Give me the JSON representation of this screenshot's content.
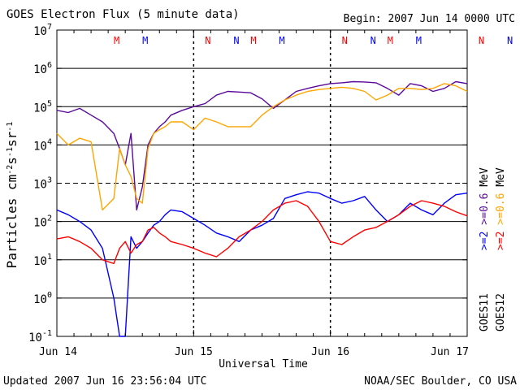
{
  "header": {
    "title": "GOES Electron Flux (5 minute data)",
    "begin": "Begin: 2007 Jun 14 0000 UTC"
  },
  "footer": {
    "updated": "Updated 2007 Jun 16 23:56:04 UTC",
    "credit": "NOAA/SEC Boulder, CO USA"
  },
  "chart_data": {
    "type": "line",
    "title": "GOES Electron Flux (5 minute data)",
    "xlabel": "Universal Time",
    "ylabel": "Particles cm-2s-1sr-1",
    "y_scale": "log",
    "ylim": [
      0.1,
      10000000
    ],
    "y_ticks": [
      {
        "value": 0.1,
        "base": "10",
        "exp": "-1"
      },
      {
        "value": 1,
        "base": "10",
        "exp": "0"
      },
      {
        "value": 10,
        "base": "10",
        "exp": "1"
      },
      {
        "value": 100,
        "base": "10",
        "exp": "2"
      },
      {
        "value": 1000,
        "base": "10",
        "exp": "3"
      },
      {
        "value": 10000,
        "base": "10",
        "exp": "4"
      },
      {
        "value": 100000,
        "base": "10",
        "exp": "5"
      },
      {
        "value": 1000000,
        "base": "10",
        "exp": "6"
      },
      {
        "value": 10000000,
        "base": "10",
        "exp": "7"
      }
    ],
    "xlim": [
      "2007-06-14 00:00",
      "2007-06-17 00:00"
    ],
    "x_ticks": [
      {
        "label": "Jun 14",
        "value": "2007-06-14 00:00"
      },
      {
        "label": "Jun 15",
        "value": "2007-06-15 00:00"
      },
      {
        "label": "Jun 16",
        "value": "2007-06-16 00:00"
      },
      {
        "label": "Jun 17",
        "value": "2007-06-17 00:00"
      }
    ],
    "threshold_lines": [
      1000
    ],
    "grid": "horizontal decades",
    "day_boundaries_dashed": true,
    "legend_right": [
      {
        "text": ">=2",
        "color": "#0000ff"
      },
      {
        "text": ">=0.6",
        "color": "#5a0a9a"
      },
      {
        "text": "MeV",
        "color": "#000000"
      },
      {
        "text": ">=2",
        "color": "#ff0000"
      },
      {
        "text": ">=0.6",
        "color": "#ffa500"
      },
      {
        "text": "MeV",
        "color": "#000000"
      },
      {
        "text": "GOES11",
        "color": "#000000"
      },
      {
        "text": "GOES12",
        "color": "#000000"
      }
    ],
    "markers": [
      {
        "label": "M",
        "hour": 10.5,
        "color": "#ff0000"
      },
      {
        "label": "M",
        "hour": 15.5,
        "color": "#0000ff"
      },
      {
        "label": "N",
        "hour": 26.5,
        "color": "#ff0000"
      },
      {
        "label": "N",
        "hour": 31.5,
        "color": "#0000ff"
      },
      {
        "label": "M",
        "hour": 34.5,
        "color": "#ff0000"
      },
      {
        "label": "M",
        "hour": 39.5,
        "color": "#0000ff"
      },
      {
        "label": "N",
        "hour": 50.5,
        "color": "#ff0000"
      },
      {
        "label": "N",
        "hour": 55.5,
        "color": "#0000ff"
      },
      {
        "label": "M",
        "hour": 58.5,
        "color": "#ff0000"
      },
      {
        "label": "M",
        "hour": 63.5,
        "color": "#0000ff"
      },
      {
        "label": "N",
        "hour": 74.5,
        "color": "#ff0000"
      },
      {
        "label": "N",
        "hour": 79.5,
        "color": "#0000ff"
      }
    ],
    "series": [
      {
        "name": "GOES11 >=0.6 MeV",
        "color": "#5a0a9a",
        "x_hours": [
          0,
          2,
          4,
          6,
          8,
          10,
          11,
          12,
          13,
          14,
          15,
          16,
          17,
          18,
          19,
          20,
          22,
          24,
          26,
          28,
          30,
          32,
          34,
          36,
          38,
          40,
          42,
          44,
          46,
          48,
          50,
          52,
          54,
          56,
          58,
          60,
          62,
          64,
          66,
          68,
          70,
          72
        ],
        "values": [
          80000,
          70000,
          90000,
          60000,
          40000,
          20000,
          8000,
          3000,
          20000,
          200,
          800,
          10000,
          20000,
          30000,
          40000,
          60000,
          80000,
          100000,
          120000,
          200000,
          250000,
          240000,
          230000,
          160000,
          90000,
          150000,
          250000,
          300000,
          350000,
          400000,
          420000,
          450000,
          440000,
          420000,
          300000,
          200000,
          400000,
          350000,
          250000,
          300000,
          450000,
          400000
        ]
      },
      {
        "name": "GOES12 >=0.6 MeV",
        "color": "#ffa500",
        "x_hours": [
          0,
          2,
          4,
          6,
          8,
          10,
          11,
          12,
          13,
          14,
          15,
          16,
          17,
          18,
          19,
          20,
          22,
          24,
          26,
          28,
          30,
          32,
          34,
          36,
          38,
          40,
          42,
          44,
          46,
          48,
          50,
          52,
          54,
          56,
          58,
          60,
          62,
          64,
          66,
          68,
          70,
          72
        ],
        "values": [
          20000,
          10000,
          15000,
          12000,
          200,
          400,
          8000,
          3000,
          1500,
          400,
          300,
          8000,
          20000,
          25000,
          30000,
          40000,
          40000,
          25000,
          50000,
          40000,
          30000,
          30000,
          30000,
          60000,
          100000,
          150000,
          200000,
          250000,
          280000,
          300000,
          320000,
          300000,
          250000,
          150000,
          200000,
          300000,
          300000,
          280000,
          300000,
          400000,
          350000,
          250000
        ]
      },
      {
        "name": "GOES11 >=2 MeV",
        "color": "#0000ff",
        "x_hours": [
          0,
          2,
          4,
          6,
          8,
          10,
          11,
          12,
          13,
          14,
          15,
          16,
          17,
          18,
          19,
          20,
          22,
          24,
          26,
          28,
          30,
          32,
          34,
          36,
          38,
          40,
          42,
          44,
          46,
          48,
          50,
          52,
          54,
          56,
          58,
          60,
          62,
          64,
          66,
          68,
          70,
          72
        ],
        "values": [
          200,
          150,
          100,
          60,
          20,
          1,
          0.1,
          0.1,
          40,
          20,
          30,
          50,
          80,
          100,
          150,
          200,
          180,
          120,
          80,
          50,
          40,
          30,
          60,
          80,
          120,
          400,
          500,
          600,
          550,
          400,
          300,
          350,
          450,
          200,
          100,
          150,
          300,
          200,
          150,
          300,
          500,
          550
        ]
      },
      {
        "name": "GOES12 >=2 MeV",
        "color": "#ff0000",
        "x_hours": [
          0,
          2,
          4,
          6,
          8,
          10,
          11,
          12,
          13,
          14,
          15,
          16,
          17,
          18,
          19,
          20,
          22,
          24,
          26,
          28,
          30,
          32,
          34,
          36,
          38,
          40,
          42,
          44,
          46,
          48,
          50,
          52,
          54,
          56,
          58,
          60,
          62,
          64,
          66,
          68,
          70,
          72
        ],
        "values": [
          35,
          40,
          30,
          20,
          10,
          8,
          20,
          30,
          15,
          25,
          30,
          60,
          70,
          50,
          40,
          30,
          25,
          20,
          15,
          12,
          20,
          40,
          60,
          100,
          200,
          300,
          350,
          250,
          100,
          30,
          25,
          40,
          60,
          70,
          100,
          150,
          250,
          350,
          300,
          250,
          180,
          140
        ]
      }
    ]
  }
}
